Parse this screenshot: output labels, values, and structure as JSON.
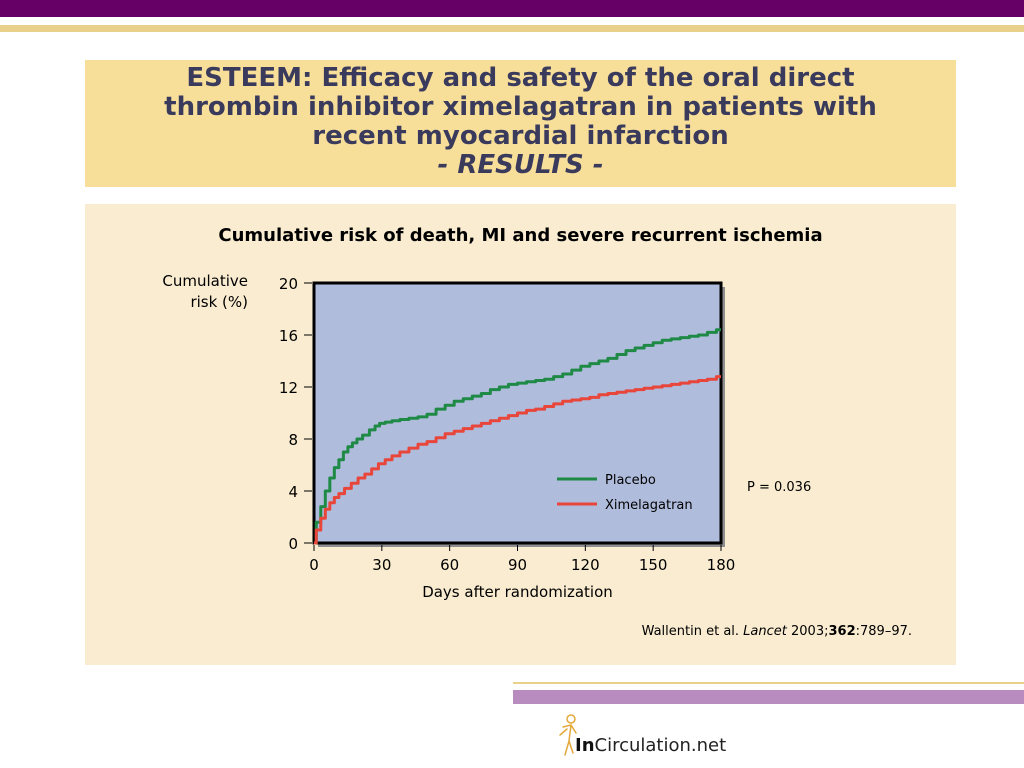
{
  "header": {
    "title_lines": [
      "ESTEEM: Efficacy and safety of the oral direct",
      "thrombin inhibitor ximelagatran in patients with",
      "recent myocardial infarction"
    ],
    "subtitle": "- RESULTS -"
  },
  "chart_data": {
    "type": "line",
    "title": "Cumulative risk of death, MI and severe recurrent ischemia",
    "ylabel_lines": [
      "Cumulative",
      "risk (%)"
    ],
    "xlabel": "Days after randomization",
    "xlim": [
      0,
      180
    ],
    "ylim": [
      0,
      20
    ],
    "xticks": [
      0,
      30,
      60,
      90,
      120,
      150,
      180
    ],
    "yticks": [
      0,
      4,
      8,
      12,
      16,
      20
    ],
    "legend_position": "lower-right",
    "plot_background": "#b0bcdc",
    "series": [
      {
        "name": "Placebo",
        "color": "#1e8a46",
        "x": [
          0,
          2,
          4,
          6,
          8,
          10,
          12,
          14,
          16,
          18,
          20,
          23,
          26,
          28,
          30,
          33,
          36,
          40,
          44,
          48,
          52,
          56,
          60,
          64,
          68,
          72,
          76,
          80,
          84,
          88,
          92,
          96,
          100,
          104,
          108,
          112,
          116,
          120,
          124,
          128,
          132,
          136,
          140,
          144,
          148,
          152,
          156,
          160,
          164,
          168,
          172,
          176,
          180
        ],
        "values": [
          0,
          1.6,
          2.8,
          4.0,
          5.0,
          5.8,
          6.4,
          7.0,
          7.4,
          7.7,
          8.0,
          8.3,
          8.7,
          9.0,
          9.2,
          9.3,
          9.4,
          9.5,
          9.6,
          9.7,
          9.9,
          10.3,
          10.6,
          10.9,
          11.1,
          11.3,
          11.5,
          11.8,
          12.0,
          12.2,
          12.3,
          12.4,
          12.5,
          12.6,
          12.8,
          13.0,
          13.3,
          13.6,
          13.8,
          14.0,
          14.2,
          14.5,
          14.8,
          15.0,
          15.2,
          15.4,
          15.6,
          15.7,
          15.8,
          15.9,
          16.0,
          16.2,
          16.4
        ]
      },
      {
        "name": "Ximelagatran",
        "color": "#e8463a",
        "x": [
          0,
          2,
          4,
          6,
          8,
          10,
          12,
          15,
          18,
          21,
          24,
          27,
          30,
          33,
          36,
          40,
          44,
          48,
          52,
          56,
          60,
          64,
          68,
          72,
          76,
          80,
          84,
          88,
          92,
          96,
          100,
          104,
          108,
          112,
          116,
          120,
          124,
          128,
          132,
          136,
          140,
          144,
          148,
          152,
          156,
          160,
          164,
          168,
          172,
          176,
          180
        ],
        "values": [
          0,
          1.0,
          1.9,
          2.6,
          3.1,
          3.5,
          3.8,
          4.2,
          4.6,
          5.0,
          5.3,
          5.7,
          6.1,
          6.4,
          6.7,
          7.0,
          7.3,
          7.6,
          7.8,
          8.1,
          8.4,
          8.6,
          8.8,
          9.0,
          9.2,
          9.4,
          9.6,
          9.8,
          10.0,
          10.2,
          10.3,
          10.5,
          10.7,
          10.9,
          11.0,
          11.1,
          11.2,
          11.4,
          11.5,
          11.6,
          11.7,
          11.8,
          11.9,
          12.0,
          12.1,
          12.2,
          12.3,
          12.4,
          12.5,
          12.6,
          12.8
        ]
      }
    ],
    "annotation": "P = 0.036"
  },
  "citation": {
    "authors": "Wallentin et al. ",
    "journal": "Lancet",
    "year": " 2003;",
    "volume": "362",
    "pages": ":789–97."
  },
  "logo": {
    "bold": "In",
    "rest": "Circulation.net"
  },
  "colors": {
    "top_bar": "#660066",
    "accent_gold": "#ead18b",
    "title_bg": "#f7df9a",
    "panel_bg": "#f9ecd0",
    "bottom_bar": "#b98cc0"
  }
}
